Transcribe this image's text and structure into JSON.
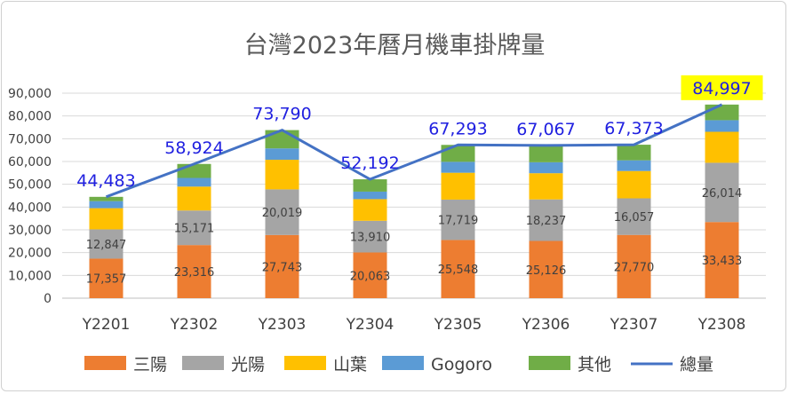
{
  "chart_data": {
    "type": "bar",
    "stacked": true,
    "title": "台灣2023年曆月機車掛牌量",
    "categories": [
      "Y2201",
      "Y2302",
      "Y2303",
      "Y2304",
      "Y2305",
      "Y2306",
      "Y2307",
      "Y2308"
    ],
    "ylim": [
      0,
      90000
    ],
    "yticks": [
      "0",
      "10,000",
      "20,000",
      "30,000",
      "40,000",
      "50,000",
      "60,000",
      "70,000",
      "80,000",
      "90,000"
    ],
    "grid": true,
    "legend_position": "bottom",
    "series": [
      {
        "name": "三陽",
        "color": "#ed7d31",
        "values": [
          17357,
          23316,
          27743,
          20063,
          25548,
          25126,
          27770,
          33433
        ],
        "labels": [
          "17,357",
          "23,316",
          "27,743",
          "20,063",
          "25,548",
          "25,126",
          "27,770",
          "33,433"
        ]
      },
      {
        "name": "光陽",
        "color": "#a5a5a5",
        "values": [
          12847,
          15171,
          20019,
          13910,
          17719,
          18237,
          16057,
          26014
        ],
        "labels": [
          "12,847",
          "15,171",
          "20,019",
          "13,910",
          "17,719",
          "18,237",
          "16,057",
          "26,014"
        ]
      },
      {
        "name": "山葉",
        "color": "#ffc000",
        "values": [
          9300,
          10500,
          13000,
          9500,
          11800,
          11500,
          12000,
          13600
        ]
      },
      {
        "name": "Gogoro",
        "color": "#5b9bd5",
        "values": [
          3100,
          3800,
          5000,
          3300,
          4800,
          4800,
          4700,
          5100
        ]
      },
      {
        "name": "其他",
        "color": "#70ad47",
        "values": [
          1879,
          6137,
          8028,
          5419,
          7426,
          7404,
          6846,
          6850
        ]
      }
    ],
    "total": {
      "name": "總量",
      "type": "line",
      "color": "#4472c4",
      "values": [
        44483,
        58924,
        73790,
        52192,
        67293,
        67067,
        67373,
        84997
      ],
      "labels": [
        "44,483",
        "58,924",
        "73,790",
        "52,192",
        "67,293",
        "67,067",
        "67,373",
        "84,997"
      ],
      "highlight_index": 7,
      "highlight_color": "#ffff00"
    }
  }
}
